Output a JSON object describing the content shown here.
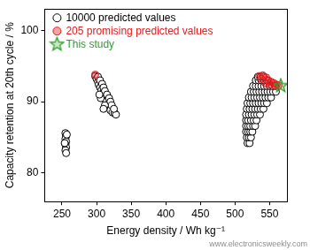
{
  "chart_data": {
    "type": "scatter",
    "x_label": "Energy density / Wh kg⁻¹",
    "y_label": "Capacity retention at 20th cycle / %",
    "annotations": [
      "www.electronicsweekly.com"
    ],
    "xlim": [
      225,
      575
    ],
    "xticks": [
      250,
      300,
      350,
      400,
      450,
      500,
      550
    ],
    "ylim": [
      76,
      103
    ],
    "yticks": [
      80,
      90,
      100
    ],
    "grid": false,
    "legend": "upper left",
    "series": [
      {
        "name": "10000 predicted values",
        "color": "#000000",
        "marker": "open_circle",
        "x": [
          255,
          256,
          255,
          256,
          255,
          256,
          255,
          256,
          257,
          254,
          298,
          300,
          302,
          303,
          305,
          307,
          309,
          310,
          312,
          314,
          316,
          318,
          320,
          323,
          326,
          328,
          302,
          305,
          308,
          310,
          312,
          315,
          318,
          320,
          322,
          325,
          312,
          310,
          306,
          304,
          518,
          521,
          517,
          520,
          523,
          516,
          519,
          522,
          525,
          516,
          519,
          522,
          526,
          529,
          516,
          519,
          523,
          527,
          531,
          516,
          520,
          524,
          528,
          532,
          536,
          517,
          521,
          525,
          529,
          533,
          537,
          541,
          518,
          522,
          526,
          530,
          534,
          538,
          542,
          546,
          520,
          524,
          528,
          532,
          536,
          540,
          544,
          548,
          552,
          523,
          527,
          531,
          535,
          539,
          543,
          547,
          551,
          555,
          559,
          526,
          530,
          534,
          538,
          542,
          546,
          550,
          554,
          558,
          530,
          534,
          538,
          542,
          546,
          533,
          537,
          541
        ],
        "values": [
          85.6,
          85.2,
          84.8,
          84.4,
          84.0,
          83.6,
          83.2,
          82.8,
          85.4,
          84.2,
          93.6,
          93.2,
          92.8,
          92.4,
          92.0,
          91.6,
          91.2,
          90.8,
          90.4,
          90.0,
          89.6,
          89.2,
          88.8,
          88.5,
          88.4,
          88.2,
          93.5,
          93.0,
          92.5,
          92.0,
          91.5,
          91.0,
          90.5,
          90.0,
          89.5,
          89.0,
          89.5,
          89.0,
          90.5,
          91.0,
          84.2,
          84.2,
          85.0,
          85.0,
          85.0,
          85.8,
          85.8,
          85.8,
          85.8,
          86.6,
          86.6,
          86.6,
          86.6,
          86.6,
          87.4,
          87.4,
          87.4,
          87.4,
          87.4,
          88.2,
          88.2,
          88.2,
          88.2,
          88.2,
          88.2,
          89.0,
          89.0,
          89.0,
          89.0,
          89.0,
          89.0,
          89.0,
          89.8,
          89.8,
          89.8,
          89.8,
          89.8,
          89.8,
          89.8,
          89.8,
          90.6,
          90.6,
          90.6,
          90.6,
          90.6,
          90.6,
          90.6,
          90.6,
          90.6,
          91.4,
          91.4,
          91.4,
          91.4,
          91.4,
          91.4,
          91.4,
          91.4,
          91.4,
          91.4,
          92.2,
          92.2,
          92.2,
          92.2,
          92.2,
          92.2,
          92.2,
          92.2,
          92.2,
          93.0,
          93.0,
          93.0,
          93.0,
          93.0,
          93.5,
          93.5,
          93.5
        ]
      },
      {
        "name": "205 promising predicted values",
        "color": "#e41a1c",
        "marker": "circle",
        "x": [
          298,
          535,
          540,
          545,
          548,
          552,
          556,
          560,
          563,
          550,
          544,
          538,
          557
        ],
        "values": [
          93.8,
          93.6,
          93.7,
          93.4,
          93.0,
          92.8,
          92.6,
          92.4,
          92.3,
          92.4,
          92.6,
          93.2,
          92.3
        ]
      },
      {
        "name": "This study",
        "color": "#2ca02c",
        "marker": "star",
        "x": [
          566
        ],
        "values": [
          92.3
        ]
      }
    ]
  }
}
